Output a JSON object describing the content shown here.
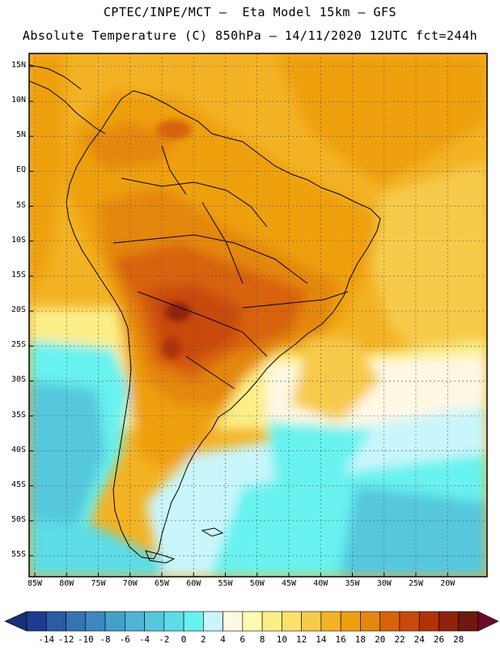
{
  "header": {
    "line1": "CPTEC/INPE/MCT –  Eta Model 15km – GFS",
    "line2": "Absolute Temperature (C) 850hPa – 14/11/2020 12UTC fct=244h"
  },
  "axes": {
    "latitudes": [
      {
        "label": "15N",
        "value": 15
      },
      {
        "label": "10N",
        "value": 10
      },
      {
        "label": "5N",
        "value": 5
      },
      {
        "label": "EQ",
        "value": 0
      },
      {
        "label": "5S",
        "value": -5
      },
      {
        "label": "10S",
        "value": -10
      },
      {
        "label": "15S",
        "value": -15
      },
      {
        "label": "20S",
        "value": -20
      },
      {
        "label": "25S",
        "value": -25
      },
      {
        "label": "30S",
        "value": -30
      },
      {
        "label": "35S",
        "value": -35
      },
      {
        "label": "40S",
        "value": -40
      },
      {
        "label": "45S",
        "value": -45
      },
      {
        "label": "50S",
        "value": -50
      },
      {
        "label": "55S",
        "value": -55
      }
    ],
    "longitudes": [
      {
        "label": "85W",
        "value": -85
      },
      {
        "label": "80W",
        "value": -80
      },
      {
        "label": "75W",
        "value": -75
      },
      {
        "label": "70W",
        "value": -70
      },
      {
        "label": "65W",
        "value": -65
      },
      {
        "label": "60W",
        "value": -60
      },
      {
        "label": "55W",
        "value": -55
      },
      {
        "label": "50W",
        "value": -50
      },
      {
        "label": "45W",
        "value": -45
      },
      {
        "label": "40W",
        "value": -40
      },
      {
        "label": "35W",
        "value": -35
      },
      {
        "label": "30W",
        "value": -30
      },
      {
        "label": "25W",
        "value": -25
      },
      {
        "label": "20W",
        "value": -20
      }
    ]
  },
  "colorbar": {
    "labels": [
      "-14",
      "-12",
      "-10",
      "-8",
      "-6",
      "-4",
      "-2",
      "0",
      "2",
      "4",
      "6",
      "8",
      "10",
      "12",
      "14",
      "16",
      "18",
      "20",
      "22",
      "24",
      "26",
      "28"
    ],
    "colors": [
      "#1c3d8f",
      "#2a5ba3",
      "#3573b3",
      "#3d88c0",
      "#44a0c9",
      "#4db5d3",
      "#54c8dd",
      "#5ddde6",
      "#68f2f0",
      "#c9f6fc",
      "#fff8e3",
      "#fffab0",
      "#fdef88",
      "#fbe06a",
      "#f6cb4c",
      "#f3b324",
      "#eea00e",
      "#e4870f",
      "#d8620a",
      "#c9490b",
      "#b03308",
      "#8e220b",
      "#6e180e"
    ],
    "under_color": "#1a2f78",
    "over_color": "#6b0a2a"
  },
  "colors": {
    "ocean_warm": "#f3b324",
    "ocean_mid": "#f6cb4c",
    "land_hot": "#d8620a",
    "land_very_hot": "#c9490b",
    "south_cold": "#54c8dd",
    "coast_line": "#000000"
  }
}
